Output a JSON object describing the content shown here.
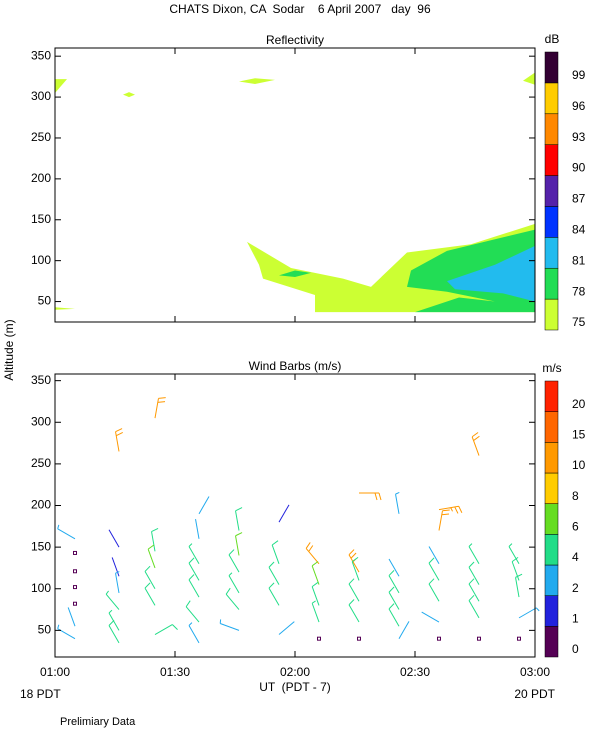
{
  "title": "CHATS Dixon, CA  Sodar    6 April 2007   day  96",
  "y_label": "Altitude (m)",
  "x_label": "UT  (PDT - 7)",
  "start_label": "18 PDT",
  "end_label": "20 PDT",
  "note": "Prelimiary Data",
  "chart_data": [
    {
      "type": "contour",
      "title": "Reflectivity",
      "xlim": [
        0,
        120
      ],
      "xticks": [
        0,
        30,
        60,
        90,
        120
      ],
      "ylim": [
        25,
        360
      ],
      "yticks": [
        50,
        100,
        150,
        200,
        250,
        300,
        350
      ],
      "colorbar": {
        "label": "dB",
        "levels": [
          75,
          78,
          81,
          84,
          87,
          90,
          93,
          96,
          99
        ],
        "colors": [
          "#ccff33",
          "#22dd55",
          "#22bbee",
          "#0033ff",
          "#5522aa",
          "#ff0000",
          "#ff8800",
          "#ffcc00",
          "#330033"
        ]
      },
      "regions": [
        {
          "level": 75,
          "points": [
            [
              0,
              322
            ],
            [
              3,
              322
            ],
            [
              0,
              305
            ]
          ]
        },
        {
          "level": 75,
          "points": [
            [
              17,
              303
            ],
            [
              18.5,
              306
            ],
            [
              20,
              303
            ],
            [
              18.5,
              300
            ]
          ]
        },
        {
          "level": 75,
          "points": [
            [
              46,
              319
            ],
            [
              50,
              323
            ],
            [
              55,
              321
            ],
            [
              50,
              316
            ]
          ]
        },
        {
          "level": 75,
          "points": [
            [
              117,
              320
            ],
            [
              120,
              330
            ],
            [
              120,
              315
            ]
          ]
        },
        {
          "level": 75,
          "points": [
            [
              0,
              40
            ],
            [
              0,
              43
            ],
            [
              5,
              41
            ]
          ]
        },
        {
          "level": 75,
          "points": [
            [
              48,
              123
            ],
            [
              59,
              91
            ],
            [
              72,
              78
            ],
            [
              79,
              68
            ],
            [
              88,
              110
            ],
            [
              104,
              120
            ],
            [
              120,
              145
            ],
            [
              120,
              37
            ],
            [
              65,
              37
            ],
            [
              65,
              58
            ],
            [
              52,
              78
            ],
            [
              51,
              95
            ]
          ]
        },
        {
          "level": 78,
          "points": [
            [
              89,
              88
            ],
            [
              98,
              112
            ],
            [
              120,
              138
            ],
            [
              120,
              37
            ],
            [
              90,
              37
            ],
            [
              101,
              55
            ],
            [
              110,
              50
            ],
            [
              98,
              62
            ],
            [
              88,
              68
            ]
          ]
        },
        {
          "level": 78,
          "points": [
            [
              56,
              82
            ],
            [
              60,
              88
            ],
            [
              64,
              85
            ],
            [
              60,
              80
            ]
          ]
        },
        {
          "level": 81,
          "points": [
            [
              98,
              75
            ],
            [
              110,
              95
            ],
            [
              120,
              118
            ],
            [
              120,
              50
            ],
            [
              112,
              60
            ],
            [
              100,
              65
            ]
          ]
        }
      ]
    },
    {
      "type": "barbs",
      "title": "Wind Barbs (m/s)",
      "xlim": [
        0,
        120
      ],
      "xticks": [
        {
          "value": 0,
          "label": "01:00"
        },
        {
          "value": 30,
          "label": "01:30"
        },
        {
          "value": 60,
          "label": "02:00"
        },
        {
          "value": 90,
          "label": "02:30"
        },
        {
          "value": 120,
          "label": "03:00"
        }
      ],
      "ylim": [
        18,
        358
      ],
      "yticks": [
        50,
        100,
        150,
        200,
        250,
        300,
        350
      ],
      "colorbar": {
        "label": "m/s",
        "levels": [
          0,
          1,
          2,
          4,
          6,
          8,
          10,
          15,
          20
        ],
        "colors": [
          "#550055",
          "#2222dd",
          "#22aaee",
          "#22dd88",
          "#66dd22",
          "#ffcc00",
          "#ff9900",
          "#ff6600",
          "#ff2200"
        ]
      },
      "barbs": {
        "t": [
          5,
          5,
          5,
          5,
          5,
          5,
          5,
          16,
          16,
          16,
          16,
          16,
          16,
          16,
          25,
          25,
          25,
          25,
          25,
          25,
          36,
          36,
          36,
          36,
          36,
          36,
          36,
          46,
          46,
          46,
          46,
          46,
          46,
          56,
          56,
          56,
          56,
          56,
          66,
          66,
          66,
          66,
          66,
          76,
          76,
          76,
          76,
          76,
          76,
          86,
          86,
          86,
          86,
          86,
          86,
          96,
          96,
          96,
          96,
          96,
          96,
          96,
          106,
          106,
          106,
          106,
          106,
          106,
          116,
          116,
          116,
          116,
          116
        ],
        "altitude": [
          160,
          143,
          121,
          102,
          82,
          55,
          40,
          265,
          150,
          115,
          95,
          75,
          50,
          35,
          305,
          145,
          125,
          100,
          80,
          45,
          190,
          160,
          130,
          110,
          90,
          60,
          35,
          170,
          140,
          120,
          95,
          75,
          50,
          180,
          130,
          105,
          80,
          45,
          130,
          105,
          80,
          60,
          40,
          215,
          120,
          110,
          85,
          60,
          40,
          190,
          115,
          95,
          75,
          55,
          40,
          195,
          170,
          130,
          110,
          85,
          60,
          40,
          260,
          130,
          105,
          85,
          65,
          40,
          130,
          110,
          90,
          65,
          40
        ],
        "speed": [
          3,
          0,
          0,
          0,
          0,
          2,
          3,
          12,
          1,
          1,
          3,
          4,
          4,
          5,
          12,
          5,
          6,
          5,
          5,
          5,
          2,
          2,
          4,
          5,
          5,
          5,
          3,
          5,
          7,
          5,
          4,
          5,
          3,
          1,
          5,
          5,
          5,
          2,
          10,
          6,
          5,
          4,
          0,
          12,
          13,
          5,
          5,
          5,
          0,
          3,
          2,
          5,
          5,
          5,
          2,
          14,
          10,
          2,
          5,
          5,
          2,
          0,
          12,
          4,
          5,
          5,
          5,
          0,
          4,
          5,
          5,
          3,
          0
        ],
        "direction": [
          300,
          null,
          null,
          null,
          null,
          340,
          300,
          350,
          330,
          340,
          350,
          320,
          330,
          330,
          10,
          350,
          340,
          330,
          330,
          60,
          30,
          350,
          330,
          330,
          330,
          320,
          330,
          350,
          350,
          330,
          330,
          320,
          290,
          30,
          340,
          330,
          330,
          50,
          320,
          340,
          340,
          340,
          null,
          90,
          330,
          340,
          330,
          330,
          null,
          350,
          330,
          330,
          330,
          330,
          30,
          80,
          10,
          330,
          330,
          330,
          300,
          null,
          340,
          330,
          330,
          330,
          330,
          null,
          330,
          340,
          350,
          60,
          null
        ]
      }
    }
  ]
}
